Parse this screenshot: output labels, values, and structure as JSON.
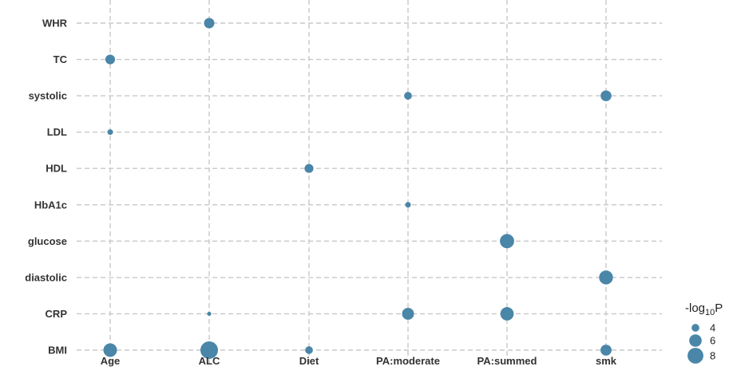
{
  "chart_data": {
    "type": "scatter",
    "x_categories": [
      "Age",
      "ALC",
      "Diet",
      "PA:moderate",
      "PA:summed",
      "smk"
    ],
    "y_categories": [
      "BMI",
      "CRP",
      "diastolic",
      "glucose",
      "HbA1c",
      "HDL",
      "LDL",
      "systolic",
      "TC",
      "WHR"
    ],
    "points": [
      {
        "x": "ALC",
        "y": "WHR",
        "value": 5.0
      },
      {
        "x": "Age",
        "y": "TC",
        "value": 4.7
      },
      {
        "x": "PA:moderate",
        "y": "systolic",
        "value": 4.0
      },
      {
        "x": "smk",
        "y": "systolic",
        "value": 5.2
      },
      {
        "x": "Age",
        "y": "LDL",
        "value": 3.4
      },
      {
        "x": "Diet",
        "y": "HDL",
        "value": 4.4
      },
      {
        "x": "PA:moderate",
        "y": "HbA1c",
        "value": 3.4
      },
      {
        "x": "PA:summed",
        "y": "glucose",
        "value": 7.0
      },
      {
        "x": "smk",
        "y": "diastolic",
        "value": 6.8
      },
      {
        "x": "ALC",
        "y": "CRP",
        "value": 3.1
      },
      {
        "x": "PA:moderate",
        "y": "CRP",
        "value": 5.7
      },
      {
        "x": "PA:summed",
        "y": "CRP",
        "value": 6.5
      },
      {
        "x": "Age",
        "y": "BMI",
        "value": 6.6
      },
      {
        "x": "ALC",
        "y": "BMI",
        "value": 9.2
      },
      {
        "x": "Diet",
        "y": "BMI",
        "value": 4.0
      },
      {
        "x": "smk",
        "y": "BMI",
        "value": 5.3
      }
    ],
    "size_legend": {
      "title_main": "-log",
      "title_sub": "10",
      "title_tail": "P",
      "entries": [
        4,
        6,
        8
      ]
    },
    "grid": true,
    "point_color": "#4a86a8",
    "grid_color": "#c8c8c8"
  }
}
